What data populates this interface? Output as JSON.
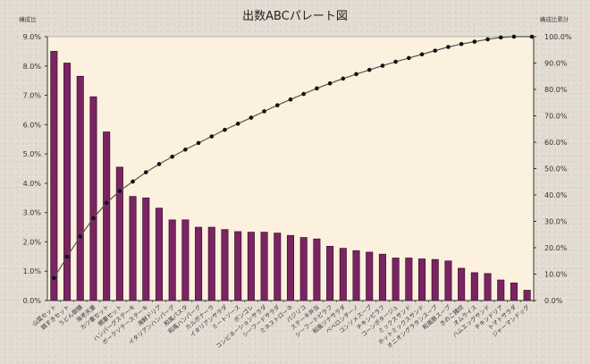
{
  "chart_data": {
    "type": "bar",
    "title": "出数ABCパレート図",
    "ylabel_left": "構成比",
    "ylabel_right": "構成比累計",
    "ylim_left": [
      0,
      9
    ],
    "ylim_right": [
      0,
      100
    ],
    "left_ticks": [
      "0.0%",
      "1.0%",
      "2.0%",
      "3.0%",
      "4.0%",
      "5.0%",
      "6.0%",
      "7.0%",
      "8.0%",
      "9.0%"
    ],
    "right_ticks": [
      "0.0%",
      "10.0%",
      "20.0%",
      "30.0%",
      "40.0%",
      "50.0%",
      "60.0%",
      "70.0%",
      "80.0%",
      "90.0%",
      "100.0%"
    ],
    "grid": false,
    "legend": "none",
    "categories": [
      "山菜セット",
      "鍋すきセット",
      "うどん御膳",
      "海老天重",
      "カツ重セット",
      "親重セット",
      "ハンバーグステーキ",
      "ポークソテーステーキ",
      "海鮮ドリア",
      "イタリアンハンバーグ",
      "和風パスタ",
      "和風ハンバーグ",
      "カルボナーラ",
      "イタリアンサラダ",
      "ミートソース",
      "ボンゴレ",
      "コンビネーションサラダ",
      "シーフードサラダ",
      "ミネストローネ",
      "バジリコ",
      "ステーキ弁当",
      "シーフードピラフ",
      "和風ツナサラダ",
      "ペペロンチーノ",
      "コンソメスープ",
      "チキンピラフ",
      "コーンポタージュ",
      "ミックスサンド",
      "ホットミックスサンド",
      "オニオングラタンスープ",
      "和風豚スープ",
      "きのこ雑炊",
      "オムライス",
      "ハムエッグサンド",
      "チキンドリア",
      "トマトサラダ",
      "ジャーマンドッグ"
    ],
    "series": [
      {
        "name": "構成比",
        "type": "bar",
        "axis": "left",
        "color": "#7b2462",
        "values": [
          8.5,
          8.1,
          7.65,
          6.95,
          5.75,
          4.55,
          3.55,
          3.5,
          3.15,
          2.75,
          2.75,
          2.5,
          2.5,
          2.42,
          2.35,
          2.33,
          2.33,
          2.3,
          2.22,
          2.15,
          2.1,
          1.85,
          1.78,
          1.7,
          1.65,
          1.58,
          1.45,
          1.45,
          1.42,
          1.4,
          1.35,
          1.1,
          0.95,
          0.92,
          0.7,
          0.6,
          0.35
        ]
      },
      {
        "name": "構成比累計",
        "type": "line",
        "axis": "right",
        "color": "#111111",
        "values": [
          8.5,
          16.6,
          24.3,
          31.2,
          37.0,
          41.5,
          45.1,
          48.6,
          51.7,
          54.5,
          57.2,
          59.7,
          62.2,
          64.7,
          67.0,
          69.3,
          71.7,
          74.0,
          76.2,
          78.3,
          80.4,
          82.3,
          84.1,
          85.8,
          87.4,
          89.0,
          90.5,
          91.9,
          93.3,
          94.7,
          96.1,
          97.2,
          98.1,
          99.0,
          99.7,
          100.0,
          100.0
        ]
      }
    ]
  }
}
